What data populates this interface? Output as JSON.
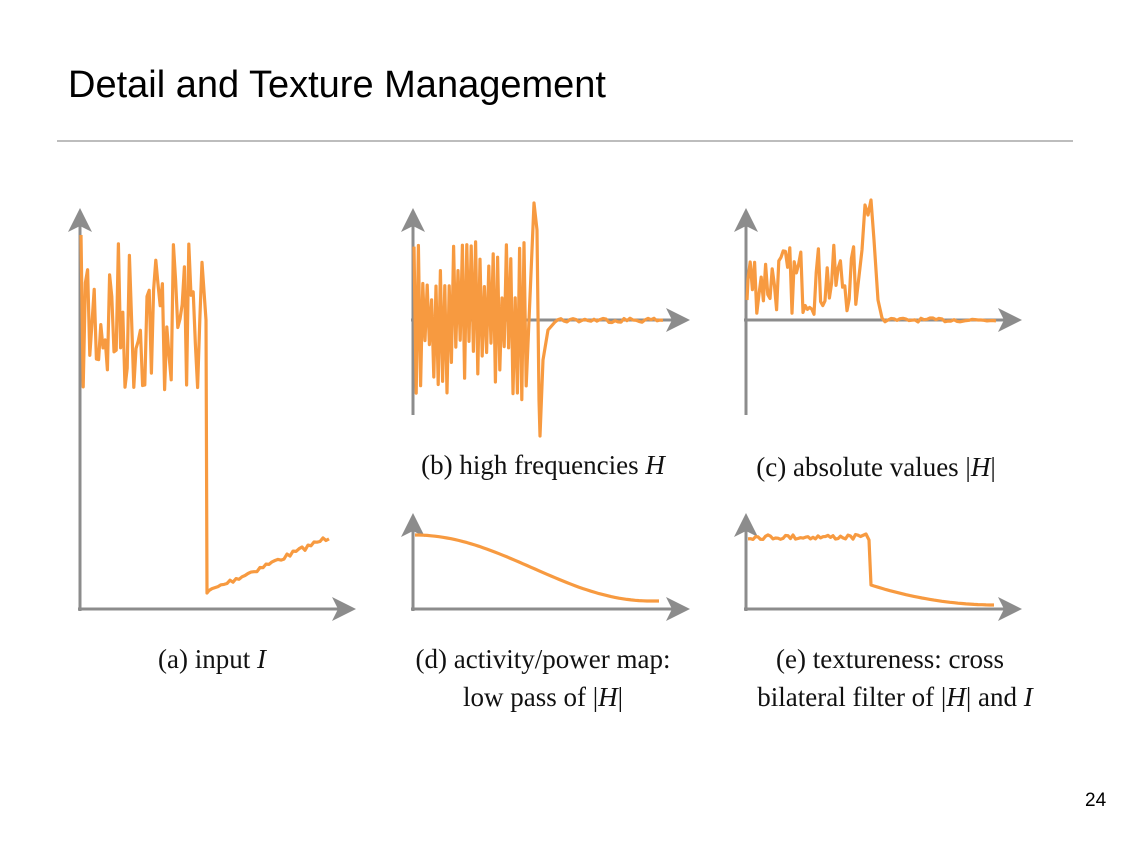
{
  "slide": {
    "title": "Detail and Texture Management",
    "page_number": "24"
  },
  "panels": [
    {
      "id": "a",
      "caption_lines": [
        "(a) input I"
      ],
      "signal": "input"
    },
    {
      "id": "b",
      "caption_lines": [
        "(b) high frequencies H"
      ],
      "signal": "high-frequencies"
    },
    {
      "id": "c",
      "caption_lines": [
        "(c) absolute values |H|"
      ],
      "signal": "absolute-values"
    },
    {
      "id": "d",
      "caption_lines": [
        "(d) activity/power map:",
        "low pass of |H|"
      ],
      "signal": "low-pass"
    },
    {
      "id": "e",
      "caption_lines": [
        "(e) textureness: cross",
        "bilateral filter of |H| and I"
      ],
      "signal": "textureness"
    }
  ],
  "colors": {
    "signal": "#f79a40",
    "axis": "#8c8c8c",
    "rule": "#bdbdbd"
  }
}
